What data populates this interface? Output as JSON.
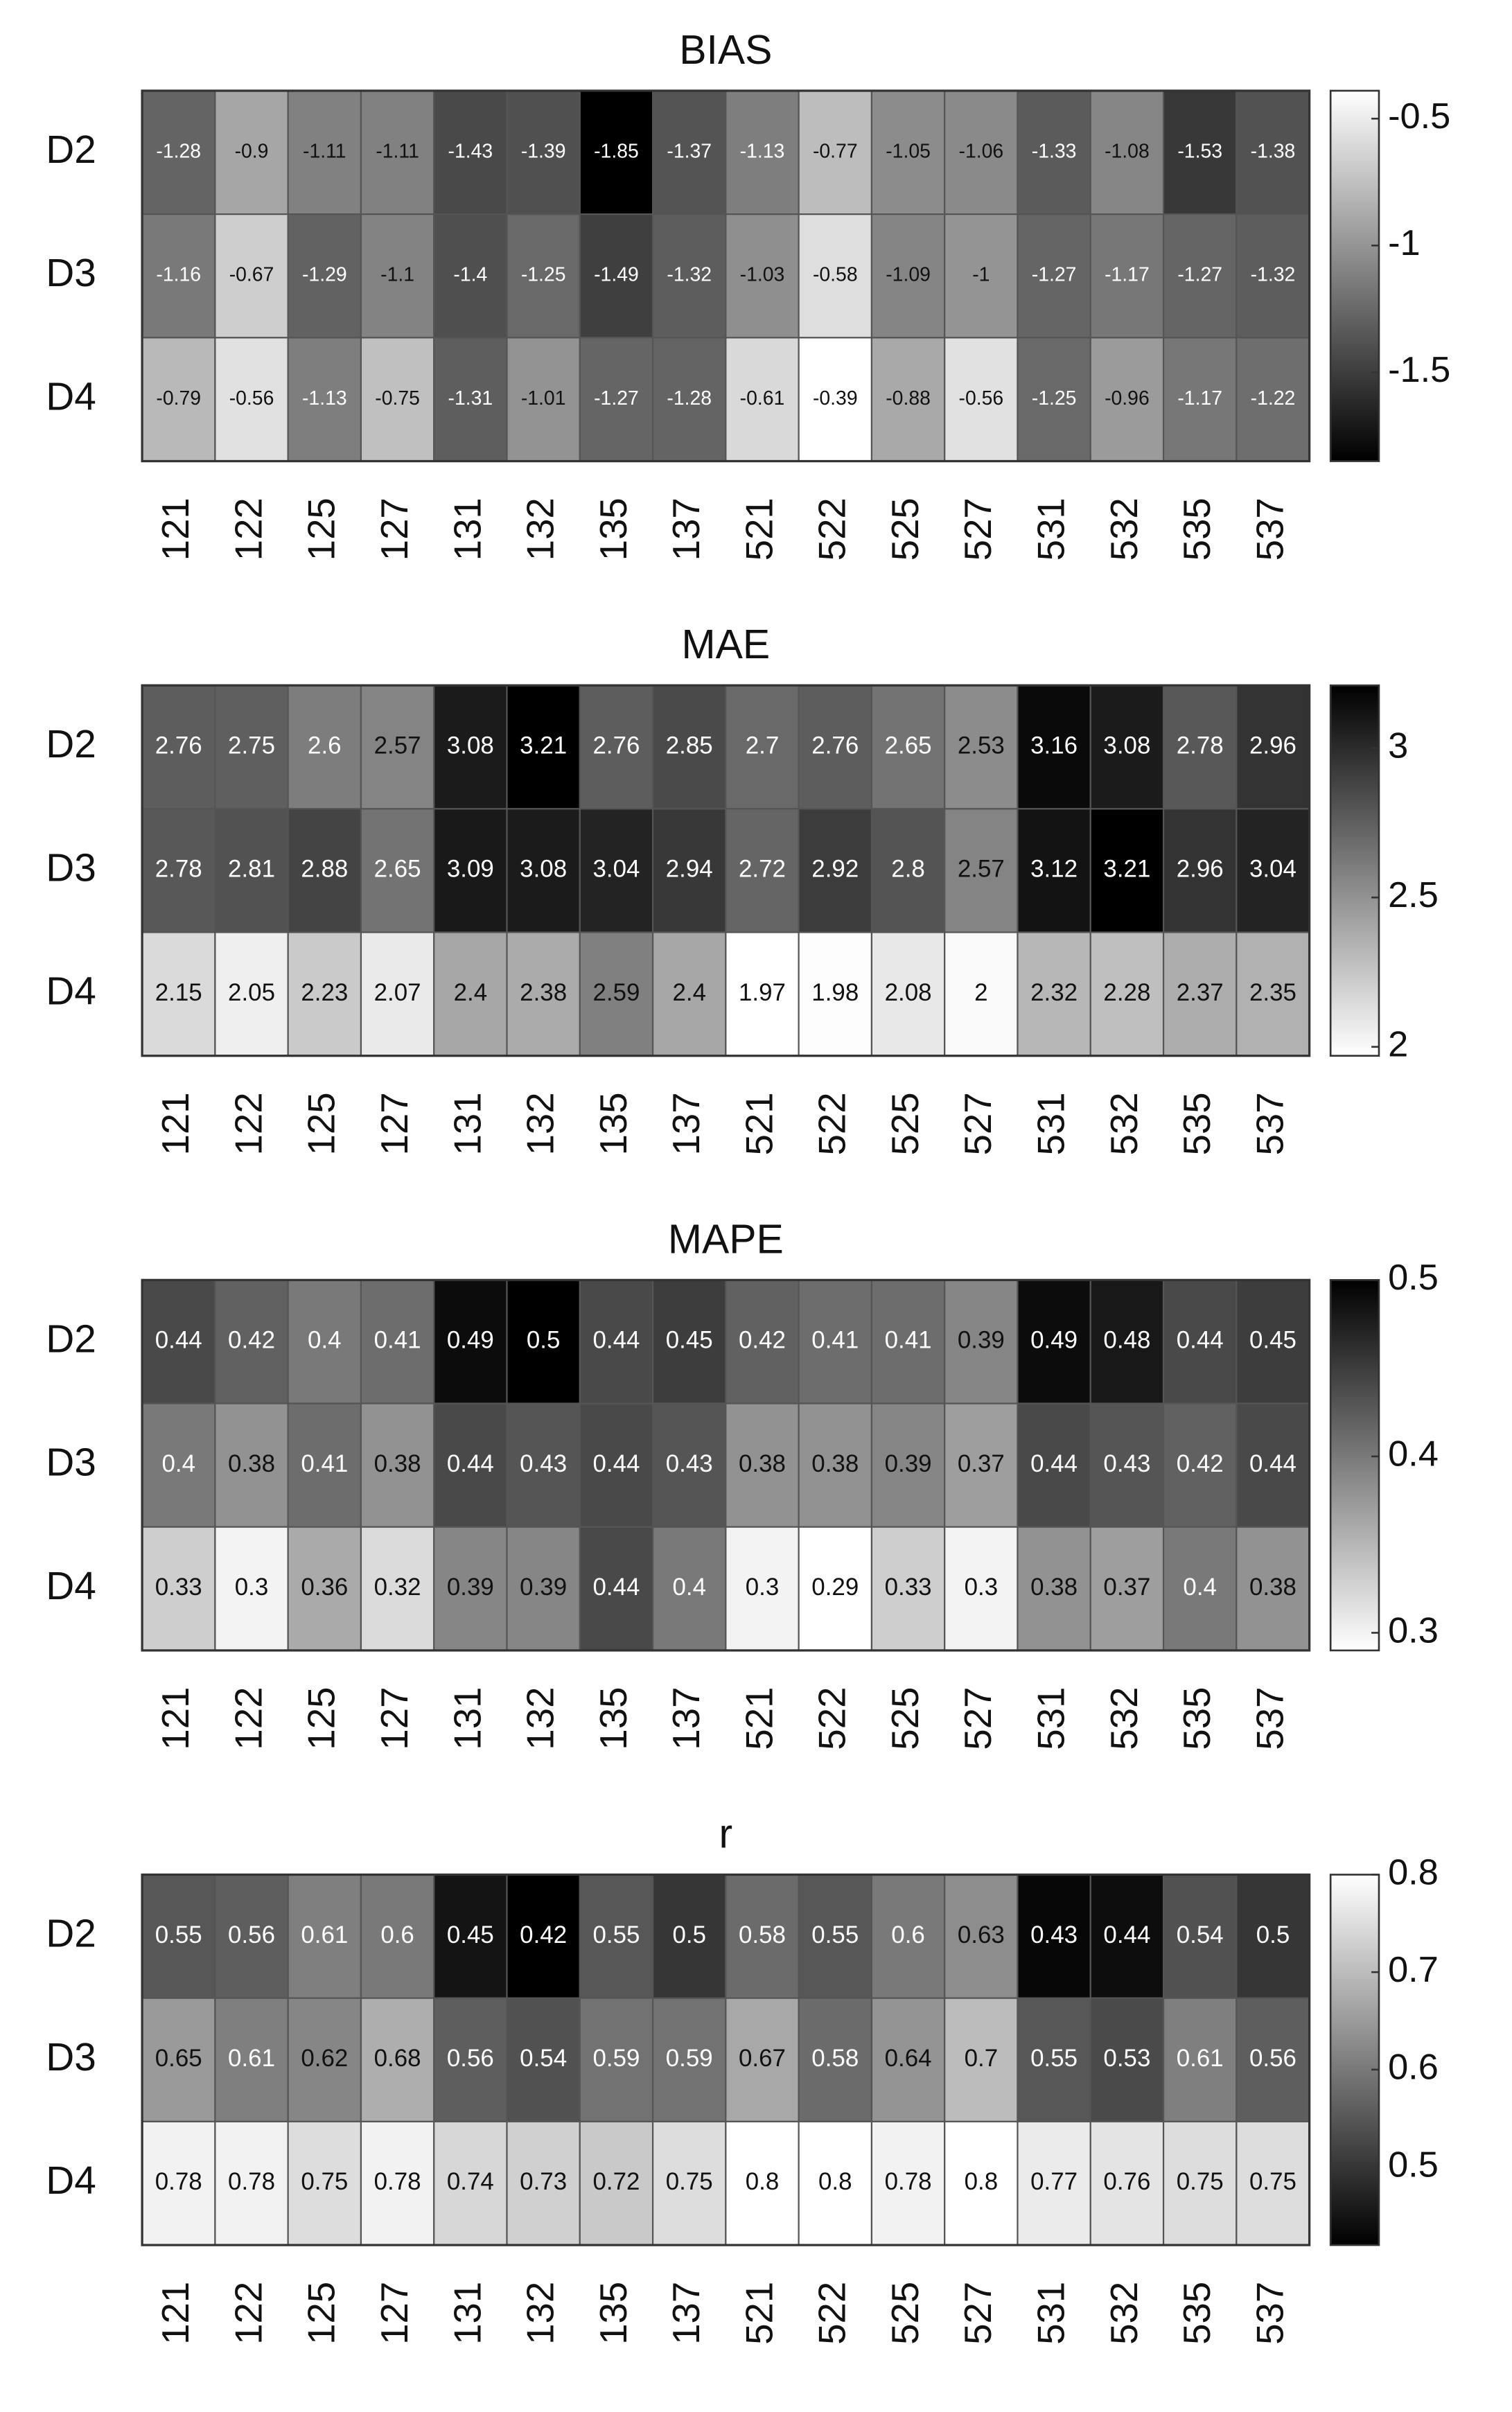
{
  "chart_data": [
    {
      "type": "heatmap",
      "title": "BIAS",
      "categories": [
        "121",
        "122",
        "125",
        "127",
        "131",
        "132",
        "135",
        "137",
        "521",
        "522",
        "525",
        "527",
        "531",
        "532",
        "535",
        "537"
      ],
      "rows": [
        "D2",
        "D3",
        "D4"
      ],
      "values": [
        [
          -1.28,
          -0.9,
          -1.11,
          -1.11,
          -1.43,
          -1.39,
          -1.85,
          -1.37,
          -1.13,
          -0.77,
          -1.05,
          -1.06,
          -1.33,
          -1.08,
          -1.53,
          -1.38
        ],
        [
          -1.16,
          -0.67,
          -1.29,
          -1.1,
          -1.4,
          -1.25,
          -1.49,
          -1.32,
          -1.03,
          -0.58,
          -1.09,
          -1,
          -1.27,
          -1.17,
          -1.27,
          -1.32
        ],
        [
          -0.79,
          -0.56,
          -1.13,
          -0.75,
          -1.31,
          -1.01,
          -1.27,
          -1.28,
          -0.61,
          -0.39,
          -0.88,
          -0.56,
          -1.25,
          -0.96,
          -1.17,
          -1.22
        ]
      ],
      "clim": [
        -1.85,
        -0.39
      ],
      "cticks": [
        -0.5,
        -1,
        -1.5
      ],
      "colors": [
        "#000000",
        "#ffffff"
      ]
    },
    {
      "type": "heatmap",
      "title": "MAE",
      "categories": [
        "121",
        "122",
        "125",
        "127",
        "131",
        "132",
        "135",
        "137",
        "521",
        "522",
        "525",
        "527",
        "531",
        "532",
        "535",
        "537"
      ],
      "rows": [
        "D2",
        "D3",
        "D4"
      ],
      "values": [
        [
          2.76,
          2.75,
          2.6,
          2.57,
          3.08,
          3.21,
          2.76,
          2.85,
          2.7,
          2.76,
          2.65,
          2.53,
          3.16,
          3.08,
          2.78,
          2.96
        ],
        [
          2.78,
          2.81,
          2.88,
          2.65,
          3.09,
          3.08,
          3.04,
          2.94,
          2.72,
          2.92,
          2.8,
          2.57,
          3.12,
          3.21,
          2.96,
          3.04
        ],
        [
          2.15,
          2.05,
          2.23,
          2.07,
          2.4,
          2.38,
          2.59,
          2.4,
          1.97,
          1.98,
          2.08,
          2,
          2.32,
          2.28,
          2.37,
          2.35
        ]
      ],
      "clim": [
        1.97,
        3.21
      ],
      "cticks": [
        3,
        2.5,
        2
      ],
      "colors": [
        "#ffffff",
        "#000000"
      ]
    },
    {
      "type": "heatmap",
      "title": "MAPE",
      "categories": [
        "121",
        "122",
        "125",
        "127",
        "131",
        "132",
        "135",
        "137",
        "521",
        "522",
        "525",
        "527",
        "531",
        "532",
        "535",
        "537"
      ],
      "rows": [
        "D2",
        "D3",
        "D4"
      ],
      "values": [
        [
          0.44,
          0.42,
          0.4,
          0.41,
          0.49,
          0.5,
          0.44,
          0.45,
          0.42,
          0.41,
          0.41,
          0.39,
          0.49,
          0.48,
          0.44,
          0.45
        ],
        [
          0.4,
          0.38,
          0.41,
          0.38,
          0.44,
          0.43,
          0.44,
          0.43,
          0.38,
          0.38,
          0.39,
          0.37,
          0.44,
          0.43,
          0.42,
          0.44
        ],
        [
          0.33,
          0.3,
          0.36,
          0.32,
          0.39,
          0.39,
          0.44,
          0.4,
          0.3,
          0.29,
          0.33,
          0.3,
          0.38,
          0.37,
          0.4,
          0.38
        ]
      ],
      "clim": [
        0.29,
        0.5
      ],
      "cticks": [
        0.5,
        0.4,
        0.3
      ],
      "colors": [
        "#ffffff",
        "#000000"
      ]
    },
    {
      "type": "heatmap",
      "title": "r",
      "categories": [
        "121",
        "122",
        "125",
        "127",
        "131",
        "132",
        "135",
        "137",
        "521",
        "522",
        "525",
        "527",
        "531",
        "532",
        "535",
        "537"
      ],
      "rows": [
        "D2",
        "D3",
        "D4"
      ],
      "values": [
        [
          0.55,
          0.56,
          0.61,
          0.6,
          0.45,
          0.42,
          0.55,
          0.5,
          0.58,
          0.55,
          0.6,
          0.63,
          0.43,
          0.44,
          0.54,
          0.5
        ],
        [
          0.65,
          0.61,
          0.62,
          0.68,
          0.56,
          0.54,
          0.59,
          0.59,
          0.67,
          0.58,
          0.64,
          0.7,
          0.55,
          0.53,
          0.61,
          0.56
        ],
        [
          0.78,
          0.78,
          0.75,
          0.78,
          0.74,
          0.73,
          0.72,
          0.75,
          0.8,
          0.8,
          0.78,
          0.8,
          0.77,
          0.76,
          0.75,
          0.75
        ]
      ],
      "clim": [
        0.42,
        0.8
      ],
      "cticks": [
        0.8,
        0.7,
        0.6,
        0.5
      ],
      "colors": [
        "#000000",
        "#ffffff"
      ]
    }
  ]
}
